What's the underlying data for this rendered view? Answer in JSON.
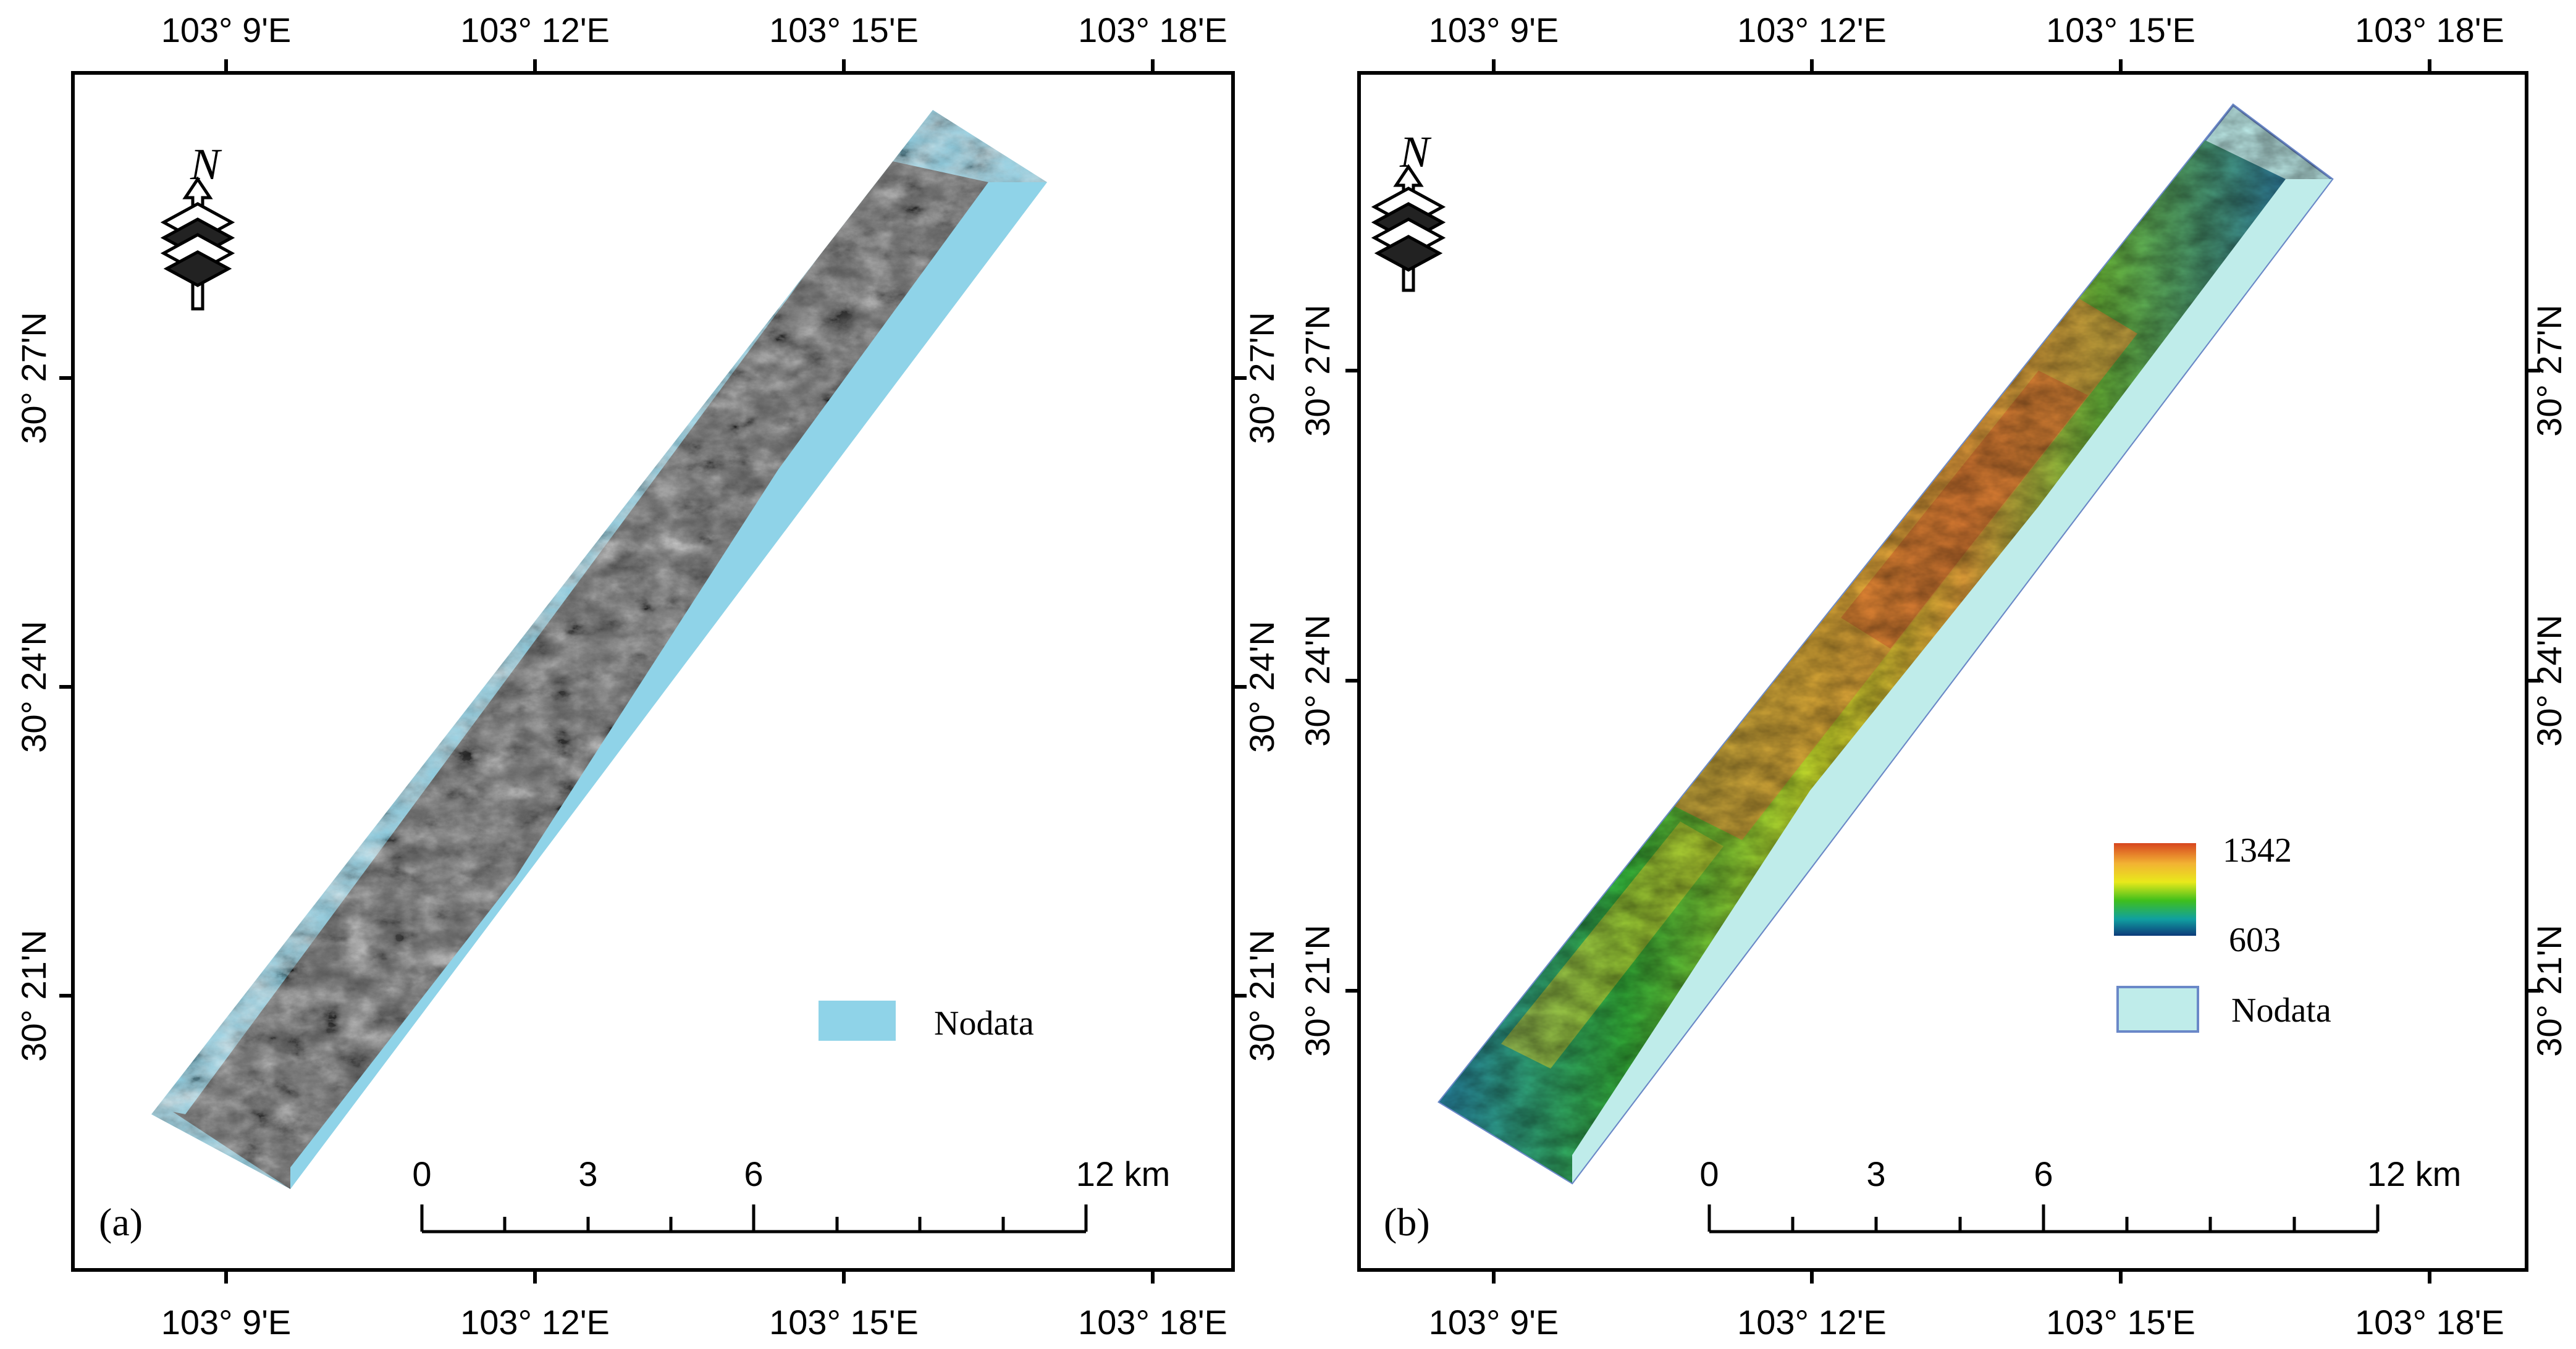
{
  "panels": [
    {
      "id": "a",
      "label": "(a)",
      "top_labels": [
        "103° 9'E",
        "103° 12'E",
        "103° 15'E",
        "103° 18'E"
      ],
      "bottom_labels": [
        "103° 9'E",
        "103° 12'E",
        "103° 15'E",
        "103° 18'E"
      ],
      "left_labels": [
        "30° 27'N",
        "30° 24'N",
        "30° 21'N"
      ],
      "right_labels": [
        "30° 27'N",
        "30° 24'N",
        "30° 21'N"
      ],
      "scale_labels": [
        "0",
        "3",
        "6",
        "12 km"
      ],
      "legend": {
        "nodata_label": "Nodata",
        "nodata_color": "#8fd3e8"
      },
      "imagery": "SAR intensity (grayscale)"
    },
    {
      "id": "b",
      "label": "(b)",
      "top_labels": [
        "103° 9'E",
        "103° 12'E",
        "103° 15'E",
        "103° 18'E"
      ],
      "bottom_labels": [
        "103° 9'E",
        "103° 12'E",
        "103° 15'E",
        "103° 18'E"
      ],
      "left_labels": [
        "30° 27'N",
        "30° 24'N",
        "30° 21'N"
      ],
      "right_labels": [
        "30° 27'N",
        "30° 24'N",
        "30° 21'N"
      ],
      "scale_labels": [
        "0",
        "3",
        "6",
        "12 km"
      ],
      "legend": {
        "max_label": "1342",
        "min_label": "603",
        "max_value": 1342,
        "min_value": 603,
        "nodata_label": "Nodata",
        "nodata_color": "#bfecea",
        "ramp_colors": [
          "#d7461f",
          "#f2b233",
          "#e9e91b",
          "#3fbf1c",
          "#10a0a0",
          "#0d3b7a"
        ]
      },
      "imagery": "DEM elevation (color)"
    }
  ],
  "north_arrow": {
    "letter": "N"
  }
}
